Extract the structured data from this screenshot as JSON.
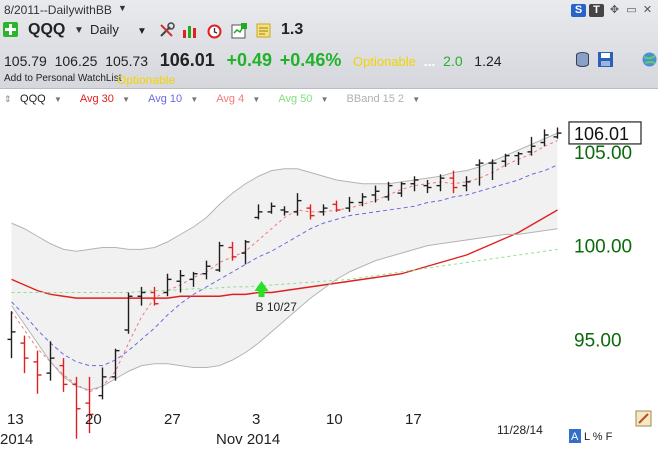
{
  "window": {
    "title": "8/2011--DailywithBB",
    "menu_arrow": "▼",
    "s_button": "S",
    "t_button": "T",
    "move_icon": "✥",
    "minimize": "▭",
    "close": "✕"
  },
  "toolbar": {
    "symbol": "QQQ",
    "symbol_arrow": "▼",
    "period": "Daily",
    "period_arrow": "▼",
    "value": "1.3",
    "icons": [
      "plus-icon",
      "tools-icon",
      "bar-chart-icon",
      "alarm-clock-icon",
      "chart-check-icon",
      "note-icon",
      "database-icon",
      "save-icon",
      "globe-icon"
    ]
  },
  "quote": {
    "open": "105.79",
    "high": "106.25",
    "low": "105.73",
    "last": "106.01",
    "change": "+0.49",
    "change_pct": "+0.46%",
    "optionable": "Optionable",
    "dots": "...",
    "stat1": "2.0",
    "stat2": "1.24"
  },
  "watchlist": {
    "link": "Add to Personal WatchList",
    "optionable": "Optionable"
  },
  "legend": [
    {
      "label": "QQQ",
      "color": "#1e1e1e"
    },
    {
      "label": "Avg 30",
      "color": "#e02020"
    },
    {
      "label": "Avg 10",
      "color": "#6a6ae0"
    },
    {
      "label": "Avg 4",
      "color": "#f07a7a"
    },
    {
      "label": "Avg 50",
      "color": "#80e080"
    },
    {
      "label": "BBand 15 2",
      "color": "#b0b0b0"
    }
  ],
  "chart_data": {
    "type": "line",
    "y_ticks": [
      "105.00",
      "100.00",
      "95.00"
    ],
    "y_range": [
      91.5,
      107.5
    ],
    "last_price_label": "106.01",
    "x_tick_labels": [
      "13",
      "20",
      "27",
      "3",
      "10",
      "17"
    ],
    "month_labels": [
      "2014",
      "Nov 2014"
    ],
    "date_stamp": "11/28/14",
    "annotation": "B 10/27",
    "bars": [
      {
        "o": 95.0,
        "h": 96.5,
        "l": 94.0,
        "c": 95.4,
        "up": true
      },
      {
        "o": 94.8,
        "h": 95.2,
        "l": 93.2,
        "c": 94.0,
        "up": false
      },
      {
        "o": 93.8,
        "h": 94.4,
        "l": 92.1,
        "c": 93.1,
        "up": false
      },
      {
        "o": 93.2,
        "h": 94.9,
        "l": 92.8,
        "c": 94.0,
        "up": true
      },
      {
        "o": 93.6,
        "h": 94.0,
        "l": 92.2,
        "c": 92.6,
        "up": false
      },
      {
        "o": 92.6,
        "h": 93.0,
        "l": 89.7,
        "c": 91.3,
        "up": false
      },
      {
        "o": 91.6,
        "h": 93.0,
        "l": 90.0,
        "c": 91.0,
        "up": false
      },
      {
        "o": 92.0,
        "h": 93.5,
        "l": 91.8,
        "c": 93.0,
        "up": true
      },
      {
        "o": 93.0,
        "h": 94.5,
        "l": 92.8,
        "c": 94.4,
        "up": true
      },
      {
        "o": 95.5,
        "h": 97.5,
        "l": 95.3,
        "c": 97.3,
        "up": true
      },
      {
        "o": 97.3,
        "h": 97.8,
        "l": 96.8,
        "c": 97.5,
        "up": true
      },
      {
        "o": 97.5,
        "h": 97.8,
        "l": 96.8,
        "c": 96.9,
        "up": false
      },
      {
        "o": 97.5,
        "h": 98.5,
        "l": 97.3,
        "c": 98.2,
        "up": true
      },
      {
        "o": 98.1,
        "h": 98.7,
        "l": 97.5,
        "c": 98.4,
        "up": true
      },
      {
        "o": 98.2,
        "h": 98.6,
        "l": 97.8,
        "c": 98.5,
        "up": true
      },
      {
        "o": 98.5,
        "h": 99.2,
        "l": 98.2,
        "c": 98.9,
        "up": true
      },
      {
        "o": 98.7,
        "h": 100.2,
        "l": 98.6,
        "c": 100.0,
        "up": true
      },
      {
        "o": 99.9,
        "h": 100.2,
        "l": 99.2,
        "c": 99.4,
        "up": false
      },
      {
        "o": 99.6,
        "h": 100.3,
        "l": 99.0,
        "c": 100.2,
        "up": true
      },
      {
        "o": 101.5,
        "h": 102.2,
        "l": 101.4,
        "c": 101.8,
        "up": true
      },
      {
        "o": 101.8,
        "h": 102.3,
        "l": 101.7,
        "c": 102.1,
        "up": true
      },
      {
        "o": 101.9,
        "h": 102.1,
        "l": 101.6,
        "c": 101.8,
        "up": true
      },
      {
        "o": 101.8,
        "h": 102.8,
        "l": 101.6,
        "c": 102.4,
        "up": true
      },
      {
        "o": 102.0,
        "h": 102.2,
        "l": 101.4,
        "c": 101.6,
        "up": false
      },
      {
        "o": 101.8,
        "h": 102.2,
        "l": 101.6,
        "c": 102.0,
        "up": true
      },
      {
        "o": 102.2,
        "h": 102.4,
        "l": 101.8,
        "c": 101.9,
        "up": false
      },
      {
        "o": 102.0,
        "h": 102.6,
        "l": 101.8,
        "c": 102.3,
        "up": true
      },
      {
        "o": 102.3,
        "h": 102.8,
        "l": 102.1,
        "c": 102.6,
        "up": true
      },
      {
        "o": 102.7,
        "h": 103.2,
        "l": 102.3,
        "c": 102.9,
        "up": true
      },
      {
        "o": 102.6,
        "h": 103.4,
        "l": 102.4,
        "c": 103.2,
        "up": true
      },
      {
        "o": 102.8,
        "h": 103.4,
        "l": 102.6,
        "c": 103.3,
        "up": true
      },
      {
        "o": 103.3,
        "h": 103.7,
        "l": 102.9,
        "c": 103.5,
        "up": true
      },
      {
        "o": 103.2,
        "h": 103.5,
        "l": 102.8,
        "c": 103.1,
        "up": true
      },
      {
        "o": 103.2,
        "h": 103.8,
        "l": 102.9,
        "c": 103.6,
        "up": true
      },
      {
        "o": 103.6,
        "h": 104.0,
        "l": 102.8,
        "c": 103.1,
        "up": false
      },
      {
        "o": 103.2,
        "h": 103.7,
        "l": 102.9,
        "c": 103.4,
        "up": true
      },
      {
        "o": 104.3,
        "h": 104.6,
        "l": 103.2,
        "c": 104.4,
        "up": true
      },
      {
        "o": 104.4,
        "h": 104.6,
        "l": 103.5,
        "c": 104.4,
        "up": true
      },
      {
        "o": 104.5,
        "h": 104.9,
        "l": 104.2,
        "c": 104.8,
        "up": true
      },
      {
        "o": 104.8,
        "h": 105.0,
        "l": 104.3,
        "c": 104.9,
        "up": true
      },
      {
        "o": 105.0,
        "h": 105.8,
        "l": 104.8,
        "c": 105.3,
        "up": true
      },
      {
        "o": 105.5,
        "h": 106.2,
        "l": 105.3,
        "c": 105.9,
        "up": true
      },
      {
        "o": 105.8,
        "h": 106.3,
        "l": 105.7,
        "c": 106.0,
        "up": true
      }
    ],
    "series": [
      {
        "name": "Avg 30",
        "color": "#e02020",
        "dash": "",
        "values": [
          98.2,
          97.9,
          97.6,
          97.4,
          97.3,
          97.2,
          97.2,
          97.2,
          97.2,
          97.2,
          97.2,
          97.2,
          97.2,
          97.3,
          97.3,
          97.3,
          97.3,
          97.4,
          97.4,
          97.5,
          97.5,
          97.6,
          97.7,
          97.8,
          97.9,
          98.0,
          98.1,
          98.2,
          98.3,
          98.4,
          98.5,
          98.7,
          98.9,
          99.1,
          99.3,
          99.5,
          99.8,
          100.1,
          100.4,
          100.7,
          101.1,
          101.5,
          101.9
        ]
      },
      {
        "name": "Avg 10",
        "color": "#6a6ae0",
        "dash": "4,3",
        "values": [
          97.0,
          96.3,
          95.5,
          94.8,
          94.2,
          93.8,
          93.6,
          93.6,
          93.9,
          94.4,
          95.0,
          95.6,
          96.3,
          96.9,
          97.4,
          97.8,
          98.2,
          98.6,
          99.0,
          99.4,
          99.7,
          100.1,
          100.5,
          100.9,
          101.2,
          101.4,
          101.6,
          101.7,
          101.8,
          101.9,
          102.0,
          102.1,
          102.3,
          102.4,
          102.6,
          102.7,
          102.9,
          103.1,
          103.3,
          103.5,
          103.8,
          104.0,
          104.3
        ]
      },
      {
        "name": "Avg 4",
        "color": "#f07a7a",
        "dash": "3,3",
        "values": [
          96.5,
          95.5,
          94.5,
          93.8,
          93.1,
          92.6,
          92.2,
          92.5,
          93.3,
          94.8,
          96.2,
          97.2,
          97.6,
          97.9,
          98.3,
          98.6,
          99.1,
          99.4,
          99.7,
          100.3,
          100.9,
          101.5,
          101.9,
          101.8,
          101.8,
          101.9,
          102.0,
          102.2,
          102.4,
          102.7,
          103.0,
          103.2,
          103.3,
          103.4,
          103.3,
          103.4,
          103.6,
          103.9,
          104.3,
          104.6,
          104.9,
          105.3,
          105.6
        ]
      },
      {
        "name": "Avg 50",
        "color": "#8ee08e",
        "dash": "3,3",
        "values": [
          97.5,
          97.5,
          97.5,
          97.5,
          97.5,
          97.5,
          97.5,
          97.5,
          97.5,
          97.5,
          97.55,
          97.6,
          97.6,
          97.65,
          97.7,
          97.7,
          97.75,
          97.8,
          97.8,
          97.85,
          97.9,
          97.95,
          98.0,
          98.05,
          98.1,
          98.15,
          98.2,
          98.3,
          98.4,
          98.5,
          98.6,
          98.7,
          98.8,
          98.9,
          99.0,
          99.1,
          99.2,
          99.3,
          99.4,
          99.5,
          99.6,
          99.7,
          99.8
        ]
      },
      {
        "name": "BBand upper",
        "color": "#b4b4b4",
        "dash": "",
        "values": [
          101.2,
          100.9,
          100.5,
          100.1,
          99.8,
          99.7,
          99.8,
          99.9,
          99.9,
          99.8,
          99.8,
          99.9,
          100.2,
          100.6,
          101.0,
          101.5,
          102.2,
          102.8,
          103.3,
          103.7,
          104.0,
          104.1,
          104.1,
          103.9,
          103.7,
          103.5,
          103.4,
          103.3,
          103.3,
          103.3,
          103.4,
          103.5,
          103.6,
          103.7,
          103.9,
          104.0,
          104.2,
          104.5,
          104.8,
          105.1,
          105.4,
          105.7,
          106.0
        ]
      },
      {
        "name": "BBand lower",
        "color": "#b4b4b4",
        "dash": "",
        "values": [
          96.8,
          95.8,
          94.8,
          93.8,
          93.0,
          92.5,
          92.3,
          92.5,
          92.9,
          93.3,
          93.6,
          93.7,
          93.7,
          93.6,
          93.5,
          93.5,
          93.6,
          93.9,
          94.3,
          94.8,
          95.4,
          96.0,
          96.6,
          97.2,
          97.7,
          98.2,
          98.6,
          98.9,
          99.2,
          99.4,
          99.6,
          99.8,
          100.0,
          100.1,
          100.2,
          100.3,
          100.4,
          100.5,
          100.6,
          100.6,
          100.7,
          100.8,
          100.9
        ]
      }
    ],
    "signal_bar_index": 19
  },
  "footer": {
    "toggles": "L % F",
    "a_button": "A"
  }
}
